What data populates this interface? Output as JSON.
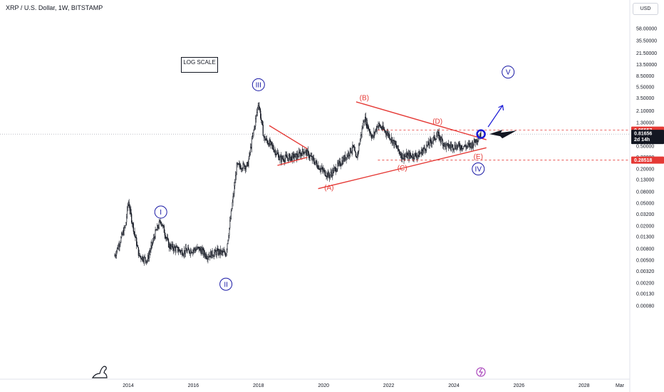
{
  "header": {
    "title": "XRP / U.S. Dollar, 1W, BITSTAMP"
  },
  "currency_button": "USD",
  "annotation_box": "LOG SCALE",
  "colors": {
    "candles": "#131722",
    "trend": "#e53935",
    "wave": "#1a1aa6",
    "grid": "#f0f3fa"
  },
  "chart_data": {
    "type": "candlestick",
    "y_scale": "log",
    "ylim": [
      0.0008,
      100
    ],
    "y_ticks": [
      "58.00000",
      "35.50000",
      "21.50000",
      "13.50000",
      "8.50000",
      "5.50000",
      "3.50000",
      "2.10000",
      "1.30000",
      "0.50000",
      "0.32000",
      "0.20000",
      "0.13000",
      "0.08000",
      "0.05000",
      "0.03200",
      "0.02000",
      "0.01300",
      "0.00800",
      "0.00500",
      "0.00320",
      "0.00200",
      "0.00130",
      "0.00080"
    ],
    "x_ticks": [
      "2014",
      "2016",
      "2018",
      "2020",
      "2022",
      "2024",
      "2026",
      "2028",
      "Mar"
    ],
    "price_path": [
      [
        "2013-08",
        0.006
      ],
      [
        "2013-12",
        0.02
      ],
      [
        "2014-01",
        0.055
      ],
      [
        "2014-02",
        0.03
      ],
      [
        "2014-05",
        0.006
      ],
      [
        "2014-08",
        0.005
      ],
      [
        "2014-11",
        0.015
      ],
      [
        "2015-01",
        0.025
      ],
      [
        "2015-04",
        0.009
      ],
      [
        "2015-09",
        0.007
      ],
      [
        "2016-03",
        0.008
      ],
      [
        "2016-06",
        0.006
      ],
      [
        "2016-10",
        0.007
      ],
      [
        "2017-01",
        0.0065
      ],
      [
        "2017-03",
        0.035
      ],
      [
        "2017-05",
        0.22
      ],
      [
        "2017-09",
        0.23
      ],
      [
        "2017-12",
        1.5
      ],
      [
        "2018-01",
        3.0
      ],
      [
        "2018-03",
        0.7
      ],
      [
        "2018-06",
        0.5
      ],
      [
        "2018-09",
        0.3
      ],
      [
        "2019-03",
        0.33
      ],
      [
        "2019-06",
        0.42
      ],
      [
        "2019-12",
        0.2
      ],
      [
        "2020-03",
        0.15
      ],
      [
        "2020-08",
        0.28
      ],
      [
        "2020-12",
        0.48
      ],
      [
        "2021-01",
        0.28
      ],
      [
        "2021-04",
        1.6
      ],
      [
        "2021-07",
        0.7
      ],
      [
        "2021-09",
        1.2
      ],
      [
        "2022-01",
        0.8
      ],
      [
        "2022-06",
        0.33
      ],
      [
        "2022-12",
        0.35
      ],
      [
        "2023-07",
        0.8
      ],
      [
        "2023-10",
        0.5
      ],
      [
        "2024-06",
        0.5
      ],
      [
        "2024-08",
        0.55
      ],
      [
        "2024-11",
        0.82
      ]
    ],
    "price_labels": [
      {
        "text": "0.95557",
        "value": 0.95557,
        "color": "#e53935"
      },
      {
        "text": "0.81656",
        "value": 0.81656,
        "color": "#131722",
        "sub": "2d 14h"
      },
      {
        "text": "0.28518",
        "value": 0.28518,
        "color": "#e53935"
      }
    ],
    "waves": [
      {
        "label": "I",
        "date": "2015-01",
        "price": 0.035,
        "style": "blue-circle"
      },
      {
        "label": "II",
        "date": "2017-01",
        "price": 0.0019,
        "style": "blue-circle"
      },
      {
        "label": "III",
        "date": "2018-01",
        "price": 6.0,
        "style": "blue-circle"
      },
      {
        "label": "IV",
        "date": "2024-10",
        "price": 0.2,
        "style": "blue-circle"
      },
      {
        "label": "V",
        "date": "2025-09",
        "price": 10.0,
        "style": "blue-circle"
      },
      {
        "label": "(A)",
        "date": "2020-03",
        "price": 0.085,
        "style": "red"
      },
      {
        "label": "(B)",
        "date": "2021-04",
        "price": 3.2,
        "style": "red"
      },
      {
        "label": "(C)",
        "date": "2022-06",
        "price": 0.19,
        "style": "red"
      },
      {
        "label": "(D)",
        "date": "2023-07",
        "price": 1.25,
        "style": "red"
      },
      {
        "label": "(E)",
        "date": "2024-10",
        "price": 0.3,
        "style": "red"
      }
    ],
    "trendlines": [
      {
        "from": [
          "2021-01",
          3.0
        ],
        "to": [
          "2025-01",
          0.65
        ]
      },
      {
        "from": [
          "2019-11",
          0.09
        ],
        "to": [
          "2025-01",
          0.47
        ]
      },
      {
        "from": [
          "2018-05",
          1.15
        ],
        "to": [
          "2019-07",
          0.45
        ]
      },
      {
        "from": [
          "2018-08",
          0.23
        ],
        "to": [
          "2019-07",
          0.32
        ]
      }
    ],
    "horizontal_levels": [
      {
        "value": 0.95557,
        "from": "2021-09"
      },
      {
        "value": 0.28518,
        "from": "2021-09"
      }
    ]
  }
}
